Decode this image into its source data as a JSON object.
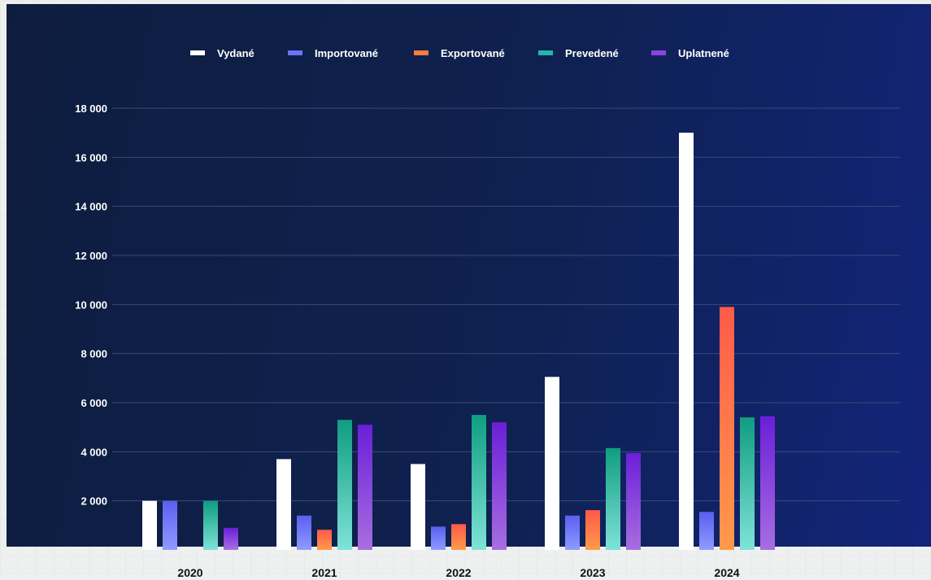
{
  "chart_data": {
    "type": "bar",
    "categories": [
      "2020",
      "2021",
      "2022",
      "2023",
      "2024"
    ],
    "series": [
      {
        "name": "Vydané",
        "color": "#ffffff",
        "values": [
          2000,
          3700,
          3500,
          7050,
          17000
        ]
      },
      {
        "name": "Importované",
        "color": "#6c73f5",
        "values": [
          2000,
          1400,
          950,
          1400,
          1550
        ]
      },
      {
        "name": "Exportované",
        "color": "#ff7a3d",
        "values": [
          0,
          820,
          1050,
          1620,
          9900
        ]
      },
      {
        "name": "Prevedené",
        "color": "#20b8a8",
        "values": [
          2000,
          5300,
          5500,
          4150,
          5400
        ]
      },
      {
        "name": "Uplatnené",
        "color": "#8a45e0",
        "values": [
          900,
          5100,
          5200,
          3950,
          5450
        ]
      }
    ],
    "yticks": [
      "2 000",
      "4 000",
      "6 000",
      "8 000",
      "10 000",
      "12 000",
      "14 000",
      "16 000",
      "18 000"
    ],
    "ylim": [
      0,
      18000
    ],
    "grid": true,
    "legend_position": "top-center"
  }
}
